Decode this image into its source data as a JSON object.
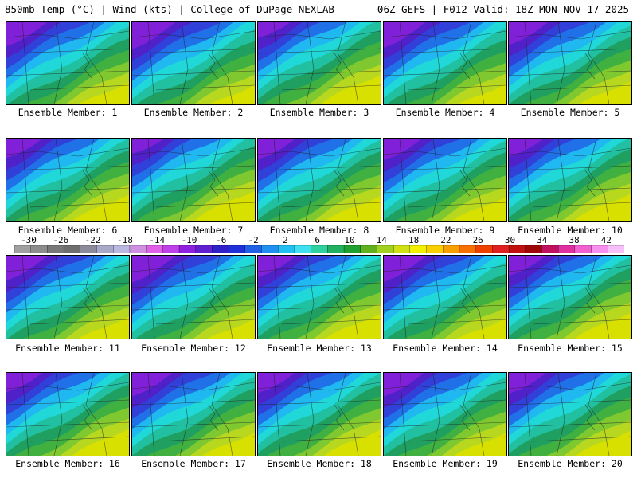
{
  "header": {
    "left": "850mb Temp (°C) | Wind (kts) | College of DuPage NEXLAB",
    "right": "06Z GEFS | F012 Valid: 18Z MON NOV 17 2025"
  },
  "panels": [
    {
      "label": "Ensemble Member: 1",
      "cold": 0.5
    },
    {
      "label": "Ensemble Member: 2",
      "cold": 0.46
    },
    {
      "label": "Ensemble Member: 3",
      "cold": 0.62
    },
    {
      "label": "Ensemble Member: 4",
      "cold": 0.48
    },
    {
      "label": "Ensemble Member: 5",
      "cold": 0.52
    },
    {
      "label": "Ensemble Member: 6",
      "cold": 0.58
    },
    {
      "label": "Ensemble Member: 7",
      "cold": 0.64
    },
    {
      "label": "Ensemble Member: 8",
      "cold": 0.56
    },
    {
      "label": "Ensemble Member: 9",
      "cold": 0.55
    },
    {
      "label": "Ensemble Member: 10",
      "cold": 0.6
    },
    {
      "label": "Ensemble Member: 11",
      "cold": 0.5
    },
    {
      "label": "Ensemble Member: 12",
      "cold": 0.47
    },
    {
      "label": "Ensemble Member: 13",
      "cold": 0.55
    },
    {
      "label": "Ensemble Member: 14",
      "cold": 0.48
    },
    {
      "label": "Ensemble Member: 15",
      "cold": 0.57
    },
    {
      "label": "Ensemble Member: 16",
      "cold": 0.58
    },
    {
      "label": "Ensemble Member: 17",
      "cold": 0.52
    },
    {
      "label": "Ensemble Member: 18",
      "cold": 0.57
    },
    {
      "label": "Ensemble Member: 19",
      "cold": 0.52
    },
    {
      "label": "Ensemble Member: 20",
      "cold": 0.56
    }
  ],
  "colorbar": {
    "tick_labels": [
      "-30",
      "-26",
      "-22",
      "-18",
      "-14",
      "-10",
      "-6",
      "-2",
      "2",
      "6",
      "10",
      "14",
      "18",
      "22",
      "26",
      "30",
      "34",
      "38",
      "42"
    ],
    "colors": [
      "#a0a0a0",
      "#8c8c8c",
      "#787878",
      "#6e6e6e",
      "#8a8a9a",
      "#a8a8c8",
      "#b8b8e0",
      "#d090e0",
      "#e060e8",
      "#c040e8",
      "#9020e0",
      "#6020d0",
      "#3020c8",
      "#2030d8",
      "#2060e8",
      "#2090f0",
      "#20c0f0",
      "#40e0f0",
      "#30d0a0",
      "#20b060",
      "#20a030",
      "#60b020",
      "#a0d020",
      "#d0e010",
      "#f0f000",
      "#f8d000",
      "#f8a000",
      "#f87000",
      "#f04000",
      "#e02020",
      "#c01010",
      "#a00808",
      "#c01060",
      "#e030a0",
      "#f060d0",
      "#f890f0",
      "#f8c0f8"
    ],
    "unit": "°C"
  }
}
